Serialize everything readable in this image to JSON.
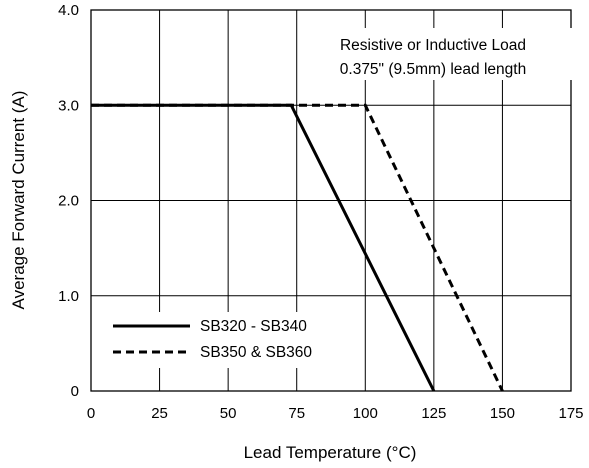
{
  "chart_data": {
    "type": "line",
    "title": "",
    "xlabel": "Lead Temperature (°C)",
    "ylabel": "Average Forward Current (A)",
    "xlim": [
      0,
      175
    ],
    "ylim": [
      0,
      4
    ],
    "xticks": [
      0,
      25,
      50,
      75,
      100,
      125,
      150,
      175
    ],
    "yticks": [
      0,
      1,
      2,
      3,
      4
    ],
    "xtick_labels": [
      "0",
      "25",
      "50",
      "75",
      "100",
      "125",
      "150",
      "175"
    ],
    "ytick_labels": [
      "0",
      "1.0",
      "2.0",
      "3.0",
      "4.0"
    ],
    "grid": true,
    "legend_position": "bottom-left",
    "annotations": [
      "Resistive or Inductive Load",
      "0.375\" (9.5mm) lead length"
    ],
    "series": [
      {
        "name": "SB320 - SB340",
        "style": "solid",
        "x": [
          0,
          73,
          125
        ],
        "y": [
          3.0,
          3.0,
          0
        ]
      },
      {
        "name": "SB350 & SB360",
        "style": "dashed",
        "x": [
          0,
          100,
          150
        ],
        "y": [
          3.0,
          3.0,
          0
        ]
      }
    ]
  }
}
